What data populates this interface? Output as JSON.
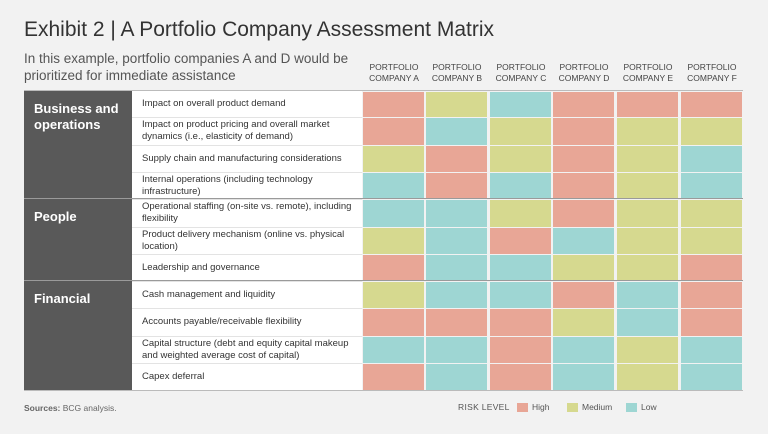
{
  "title": "Exhibit 2 | A Portfolio Company Assessment Matrix",
  "subtitle": "In this example, portfolio companies A and D would be prioritized for immediate assistance",
  "source_label": "Sources:",
  "source_text": "BCG analysis.",
  "colors": {
    "High": "#e8a696",
    "Medium": "#d6d98f",
    "Low": "#9ed6d3"
  },
  "chart_data": {
    "type": "heatmap",
    "title": "Exhibit 2 | A Portfolio Company Assessment Matrix",
    "columns": [
      [
        "PORTFOLIO",
        "COMPANY A"
      ],
      [
        "PORTFOLIO",
        "COMPANY B"
      ],
      [
        "PORTFOLIO",
        "COMPANY C"
      ],
      [
        "PORTFOLIO",
        "COMPANY D"
      ],
      [
        "PORTFOLIO",
        "COMPANY E"
      ],
      [
        "PORTFOLIO",
        "COMPANY F"
      ]
    ],
    "categories": [
      {
        "name": "Business and operations",
        "rows": [
          0,
          1,
          2,
          3
        ]
      },
      {
        "name": "People",
        "rows": [
          4,
          5,
          6
        ]
      },
      {
        "name": "Financial",
        "rows": [
          7,
          8,
          9,
          10
        ]
      }
    ],
    "rows": [
      {
        "label": "Impact on overall product demand",
        "values": [
          "High",
          "Medium",
          "Low",
          "High",
          "High",
          "High"
        ]
      },
      {
        "label": "Impact on product pricing and overall market dynamics (i.e., elasticity of demand)",
        "values": [
          "High",
          "Low",
          "Medium",
          "High",
          "Medium",
          "Medium"
        ]
      },
      {
        "label": "Supply chain and manufacturing considerations",
        "values": [
          "Medium",
          "High",
          "Medium",
          "High",
          "Medium",
          "Low"
        ]
      },
      {
        "label": "Internal operations (including technology infrastructure)",
        "values": [
          "Low",
          "High",
          "Low",
          "High",
          "Medium",
          "Low"
        ]
      },
      {
        "label": "Operational staffing (on-site vs. remote), including flexibility",
        "values": [
          "Low",
          "Low",
          "Medium",
          "High",
          "Medium",
          "Medium"
        ]
      },
      {
        "label": "Product delivery mechanism (online vs. physical location)",
        "values": [
          "Medium",
          "Low",
          "High",
          "Low",
          "Medium",
          "Medium"
        ]
      },
      {
        "label": "Leadership and governance",
        "values": [
          "High",
          "Low",
          "Low",
          "Medium",
          "Medium",
          "High"
        ]
      },
      {
        "label": "Cash management and liquidity",
        "values": [
          "Medium",
          "Low",
          "Low",
          "High",
          "Low",
          "High"
        ]
      },
      {
        "label": "Accounts payable/receivable flexibility",
        "values": [
          "High",
          "High",
          "High",
          "Medium",
          "Low",
          "High"
        ]
      },
      {
        "label": "Capital structure (debt and equity capital makeup and weighted average cost of capital)",
        "values": [
          "Low",
          "Low",
          "High",
          "Low",
          "Medium",
          "Low"
        ]
      },
      {
        "label": "Capex deferral",
        "values": [
          "High",
          "Low",
          "High",
          "Low",
          "Medium",
          "Low"
        ]
      }
    ],
    "legend": {
      "title": "RISK LEVEL",
      "items": [
        "High",
        "Medium",
        "Low"
      ],
      "placement": "bottom-right"
    }
  }
}
